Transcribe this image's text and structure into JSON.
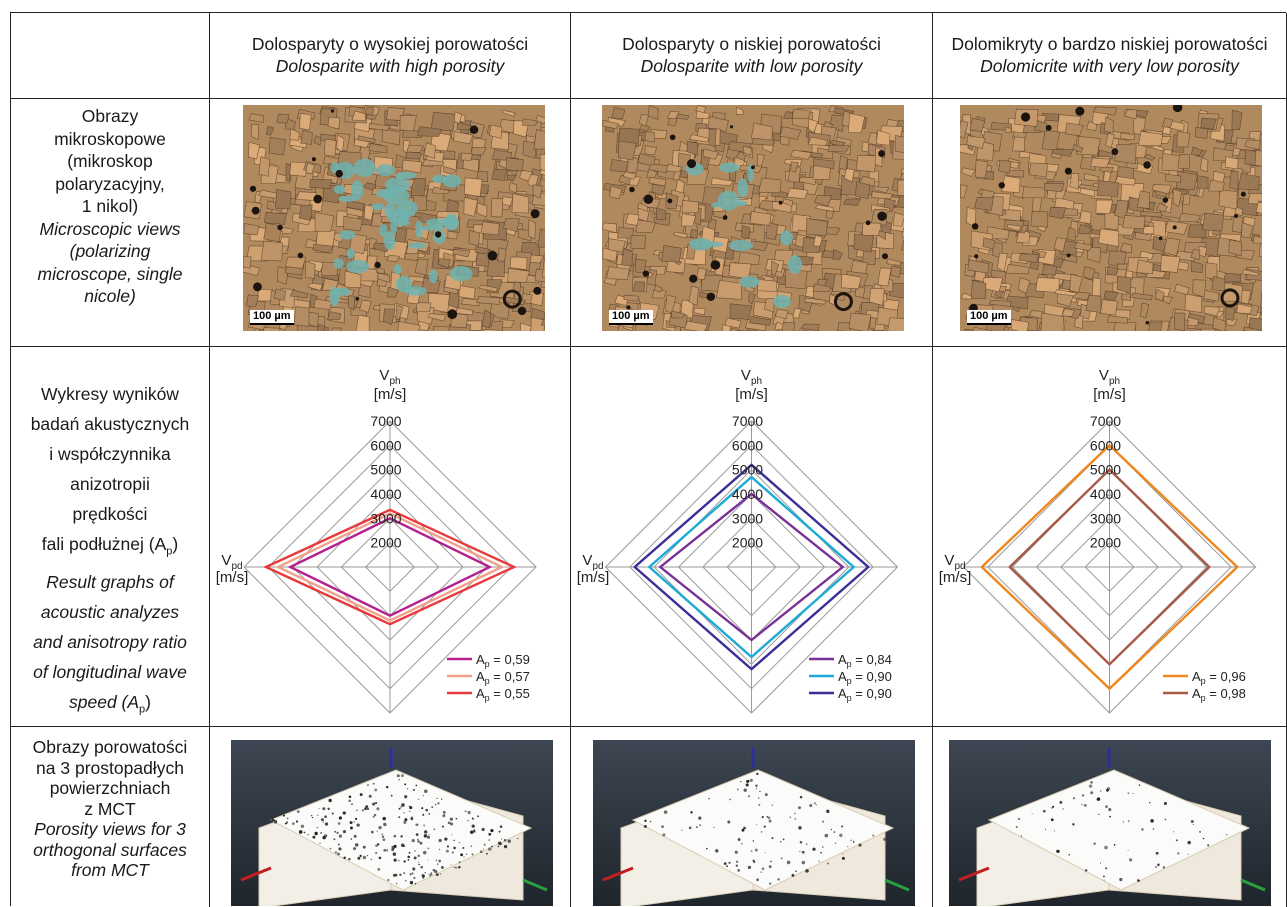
{
  "columns": [
    {
      "pl": "Dolosparyty o wysokiej porowatości",
      "en": "Dolosparite with high porosity"
    },
    {
      "pl": "Dolosparyty o niskiej porowatości",
      "en": "Dolosparite with low porosity"
    },
    {
      "pl": "Dolomikryty o bardzo niskiej porowatości",
      "en": "Dolomicrite with very low porosity"
    }
  ],
  "rows": {
    "micro": {
      "pl": [
        "Obrazy",
        "mikroskopowe",
        "(mikroskop",
        "polaryzacyjny,",
        "1 nikol)"
      ],
      "en": [
        "Microscopic views",
        "(polarizing",
        "microscope, single",
        "nicole)"
      ],
      "scale_label": "100 µm"
    },
    "radar": {
      "pl": [
        "Wykresy wyników",
        "badań akustycznych",
        "i współczynnika",
        "anizotropii",
        "prędkości",
        "fali podłużnej (A",
        "p",
        ")"
      ],
      "en": [
        "Result graphs of",
        "acoustic analyzes",
        "and anisotropy ratio",
        "of longitudinal wave",
        "speed (A",
        "p",
        ")"
      ]
    },
    "mct": {
      "pl": [
        "Obrazy porowatości",
        "na 3 prostopadłych",
        "powierzchniach",
        "z MCT"
      ],
      "en": [
        "Porosity views for 3",
        "orthogonal surfaces",
        "from MCT"
      ]
    }
  },
  "chart_data": [
    {
      "type": "radar",
      "axis_top": {
        "label": "V",
        "sub": "ph",
        "unit": "[m/s]"
      },
      "axis_left": {
        "label": "V",
        "sub": "pd",
        "unit": "[m/s]"
      },
      "ticks": [
        2000,
        3000,
        4000,
        5000,
        6000,
        7000
      ],
      "range": [
        1000,
        7000
      ],
      "series": [
        {
          "name": "A",
          "sub": "p",
          "value_text": " = 0,59",
          "color": "#b5208f",
          "vph": 3000,
          "vpd": 5100
        },
        {
          "name": "A",
          "sub": "p",
          "value_text": " = 0,57",
          "color": "#f2a08a",
          "vph": 3200,
          "vpd": 5600
        },
        {
          "name": "A",
          "sub": "p",
          "value_text": " = 0,55",
          "color": "#e8393b",
          "vph": 3350,
          "vpd": 6100
        }
      ]
    },
    {
      "type": "radar",
      "axis_top": {
        "label": "V",
        "sub": "ph",
        "unit": "[m/s]"
      },
      "axis_left": {
        "label": "V",
        "sub": "pd",
        "unit": "[m/s]"
      },
      "ticks": [
        2000,
        3000,
        4000,
        5000,
        6000,
        7000
      ],
      "range": [
        1000,
        7000
      ],
      "series": [
        {
          "name": "A",
          "sub": "p",
          "value_text": " = 0,84",
          "color": "#7a2f96",
          "vph": 4000,
          "vpd": 4750
        },
        {
          "name": "A",
          "sub": "p",
          "value_text": " = 0,90",
          "color": "#1ea9d6",
          "vph": 4700,
          "vpd": 5200
        },
        {
          "name": "A",
          "sub": "p",
          "value_text": " = 0,90",
          "color": "#3b2f96",
          "vph": 5200,
          "vpd": 5800
        }
      ]
    },
    {
      "type": "radar",
      "axis_top": {
        "label": "V",
        "sub": "ph",
        "unit": "[m/s]"
      },
      "axis_left": {
        "label": "V",
        "sub": "pd",
        "unit": "[m/s]"
      },
      "ticks": [
        2000,
        3000,
        4000,
        5000,
        6000,
        7000
      ],
      "range": [
        1000,
        7000
      ],
      "series": [
        {
          "name": "A",
          "sub": "p",
          "value_text": " = 0,96",
          "color": "#f0861e",
          "vph": 6000,
          "vpd": 6250
        },
        {
          "name": "A",
          "sub": "p",
          "value_text": " = 0,98",
          "color": "#a85a45",
          "vph": 5000,
          "vpd": 5100
        }
      ]
    }
  ]
}
